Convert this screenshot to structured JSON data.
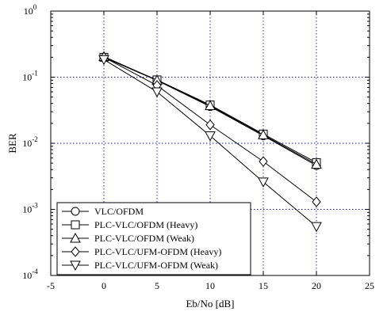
{
  "chart_data": {
    "type": "line",
    "title": "",
    "xlabel": "Eb/No [dB]",
    "ylabel": "BER",
    "xlim": [
      -5,
      25
    ],
    "ylim": [
      0.0001,
      1
    ],
    "yscale": "log",
    "grid": true,
    "legend_position": "bottom-left",
    "x_ticks": [
      "-5",
      "0",
      "5",
      "10",
      "15",
      "20",
      "25"
    ],
    "y_ticks": [
      {
        "base": "10",
        "exp": "0",
        "value": 1
      },
      {
        "base": "10",
        "exp": "-1",
        "value": 0.1
      },
      {
        "base": "10",
        "exp": "-2",
        "value": 0.01
      },
      {
        "base": "10",
        "exp": "-3",
        "value": 0.001
      },
      {
        "base": "10",
        "exp": "-4",
        "value": 0.0001
      }
    ],
    "x": [
      0,
      5,
      10,
      15,
      20
    ],
    "series": [
      {
        "name": "VLC/OFDM",
        "marker": "circle",
        "values": [
          0.2,
          0.089,
          0.036,
          0.013,
          0.0046
        ]
      },
      {
        "name": "PLC-VLC/OFDM (Heavy)",
        "marker": "square",
        "values": [
          0.2,
          0.091,
          0.038,
          0.0138,
          0.0051
        ]
      },
      {
        "name": "PLC-VLC/OFDM (Weak)",
        "marker": "triangle-up",
        "values": [
          0.205,
          0.09,
          0.037,
          0.0134,
          0.0048
        ]
      },
      {
        "name": "PLC-VLC/UFM-OFDM (Heavy)",
        "marker": "diamond",
        "values": [
          0.2,
          0.075,
          0.019,
          0.0053,
          0.0013
        ]
      },
      {
        "name": "PLC-VLC/UFM-OFDM (Weak)",
        "marker": "triangle-down",
        "values": [
          0.185,
          0.06,
          0.013,
          0.0026,
          0.00055
        ]
      }
    ]
  }
}
